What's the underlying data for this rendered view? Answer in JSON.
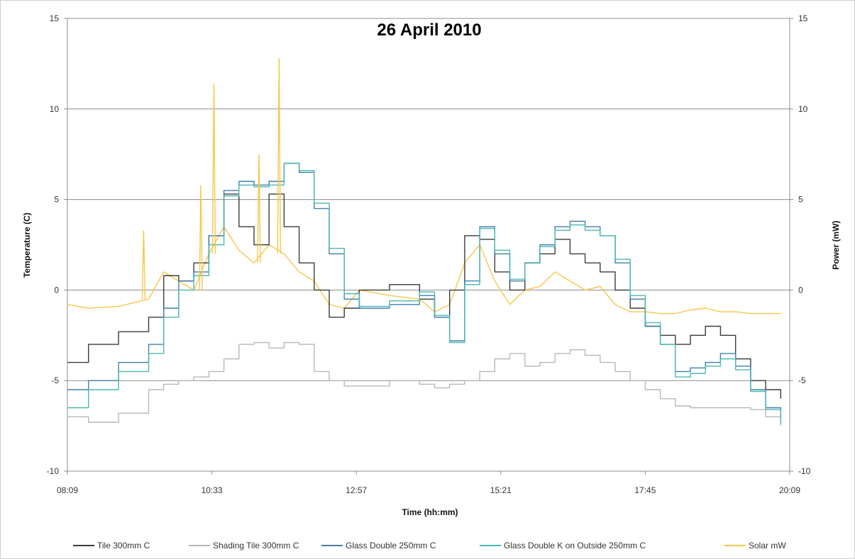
{
  "chart_data": {
    "type": "line",
    "title": "26 April 2010",
    "xlabel": "Time (hh:mm)",
    "ylabel": "Temperature (C)",
    "y2label": "Power (mW)",
    "xlim": [
      "08:09",
      "20:09"
    ],
    "x_ticks": [
      "08:09",
      "10:33",
      "12:57",
      "15:21",
      "17:45",
      "20:09"
    ],
    "ylim": [
      -10,
      15
    ],
    "y2lim": [
      -10,
      15
    ],
    "y_ticks": [
      "-10",
      "-5",
      "0",
      "5",
      "10",
      "15"
    ],
    "y2_ticks": [
      "-10",
      "-5",
      "0",
      "5",
      "10",
      "15"
    ],
    "grid": "horizontal",
    "legend": "bottom",
    "x": [
      "08:09",
      "08:30",
      "09:00",
      "09:30",
      "09:45",
      "10:00",
      "10:15",
      "10:30",
      "10:45",
      "11:00",
      "11:15",
      "11:30",
      "11:45",
      "12:00",
      "12:15",
      "12:30",
      "12:45",
      "13:00",
      "13:30",
      "14:00",
      "14:15",
      "14:30",
      "14:45",
      "15:00",
      "15:15",
      "15:30",
      "15:45",
      "16:00",
      "16:15",
      "16:30",
      "16:45",
      "17:00",
      "17:15",
      "17:30",
      "17:45",
      "18:00",
      "18:15",
      "18:30",
      "18:45",
      "19:00",
      "19:15",
      "19:30",
      "19:45",
      "20:00"
    ],
    "series": [
      {
        "name": "Tile 300mm C",
        "color": "#3b3b3b",
        "axis": "left",
        "values": [
          -4.0,
          -3.0,
          -2.3,
          -1.5,
          0.8,
          0.5,
          1.5,
          3.0,
          5.3,
          3.5,
          2.5,
          5.3,
          3.5,
          1.5,
          0.0,
          -1.5,
          -1.0,
          0.0,
          0.3,
          -0.5,
          -1.5,
          0.0,
          3.0,
          2.8,
          1.0,
          0.0,
          1.5,
          2.0,
          2.8,
          2.0,
          1.5,
          1.0,
          0.0,
          -1.0,
          -2.0,
          -2.5,
          -3.0,
          -2.5,
          -2.0,
          -2.5,
          -3.8,
          -5.0,
          -5.5,
          -6.0
        ]
      },
      {
        "name": "Shading Tile 300mm C",
        "color": "#b8b8b8",
        "axis": "left",
        "values": [
          -7.0,
          -7.3,
          -6.8,
          -5.5,
          -5.2,
          -5.0,
          -4.8,
          -4.5,
          -3.8,
          -3.0,
          -2.9,
          -3.2,
          -2.9,
          -3.0,
          -4.5,
          -5.0,
          -5.3,
          -5.3,
          -5.0,
          -5.2,
          -5.4,
          -5.2,
          -5.0,
          -4.5,
          -3.8,
          -3.5,
          -4.2,
          -4.0,
          -3.5,
          -3.3,
          -3.6,
          -4.0,
          -4.5,
          -5.0,
          -5.5,
          -6.0,
          -6.4,
          -6.5,
          -6.5,
          -6.5,
          -6.5,
          -6.6,
          -7.0,
          -7.5
        ]
      },
      {
        "name": "Glass Double 250mm C",
        "color": "#3f7fae",
        "axis": "left",
        "values": [
          -5.5,
          -5.0,
          -4.0,
          -3.0,
          -1.0,
          0.5,
          1.0,
          3.0,
          5.5,
          6.0,
          5.8,
          6.0,
          7.0,
          6.5,
          4.5,
          2.0,
          -0.5,
          -1.0,
          -0.8,
          -0.3,
          -1.5,
          -2.8,
          0.5,
          3.5,
          2.0,
          0.5,
          1.5,
          2.5,
          3.5,
          3.8,
          3.5,
          3.0,
          1.5,
          -0.5,
          -2.0,
          -3.0,
          -4.5,
          -4.3,
          -4.0,
          -3.5,
          -4.2,
          -5.5,
          -6.5,
          -7.2
        ]
      },
      {
        "name": "Glass Double K on Outside 250mm C",
        "color": "#4ab8b0",
        "axis": "left",
        "values": [
          -6.5,
          -5.5,
          -4.5,
          -3.5,
          -1.5,
          0.0,
          0.8,
          2.5,
          5.2,
          5.8,
          5.7,
          5.8,
          7.0,
          6.6,
          4.8,
          2.3,
          -0.2,
          -0.9,
          -0.6,
          -0.1,
          -1.4,
          -2.9,
          0.3,
          3.4,
          2.2,
          0.6,
          1.5,
          2.4,
          3.3,
          3.6,
          3.3,
          3.0,
          1.7,
          -0.3,
          -1.8,
          -3.0,
          -4.8,
          -4.6,
          -4.2,
          -3.8,
          -4.4,
          -5.6,
          -6.6,
          -7.4
        ]
      },
      {
        "name": "Solar mW",
        "color": "#f7c64a",
        "axis": "right",
        "values": [
          -0.8,
          -1.0,
          -0.9,
          -0.5,
          1.0,
          0.5,
          0.0,
          2.0,
          3.5,
          2.2,
          1.5,
          2.5,
          2.0,
          1.0,
          0.5,
          -0.8,
          -1.0,
          0.0,
          -0.3,
          -0.5,
          -1.2,
          -0.8,
          1.5,
          2.5,
          0.5,
          -0.8,
          0.0,
          0.2,
          1.0,
          0.5,
          0.0,
          0.2,
          -0.8,
          -1.2,
          -1.2,
          -1.3,
          -1.3,
          -1.1,
          -1.0,
          -1.2,
          -1.2,
          -1.3,
          -1.3,
          -1.3
        ]
      }
    ],
    "annotations": [
      {
        "series": "Solar mW",
        "x": "10:35",
        "y": 11.4
      },
      {
        "series": "Solar mW",
        "x": "11:40",
        "y": 12.8
      },
      {
        "series": "Solar mW",
        "x": "10:22",
        "y": 5.8
      },
      {
        "series": "Solar mW",
        "x": "11:20",
        "y": 7.5
      },
      {
        "series": "Solar mW",
        "x": "09:25",
        "y": 3.3
      }
    ]
  }
}
